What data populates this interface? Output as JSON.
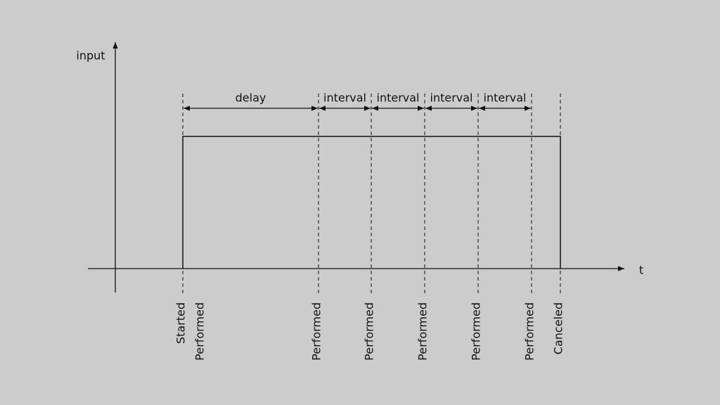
{
  "axes": {
    "y_label": "input",
    "x_label": "t"
  },
  "spans": [
    {
      "label": "delay"
    },
    {
      "label": "interval"
    },
    {
      "label": "interval"
    },
    {
      "label": "interval"
    },
    {
      "label": "interval"
    }
  ],
  "events": [
    [
      "Started",
      "Performed"
    ],
    [
      "Performed"
    ],
    [
      "Performed"
    ],
    [
      "Performed"
    ],
    [
      "Performed"
    ],
    [
      "Performed"
    ],
    [
      "Canceled"
    ]
  ]
}
